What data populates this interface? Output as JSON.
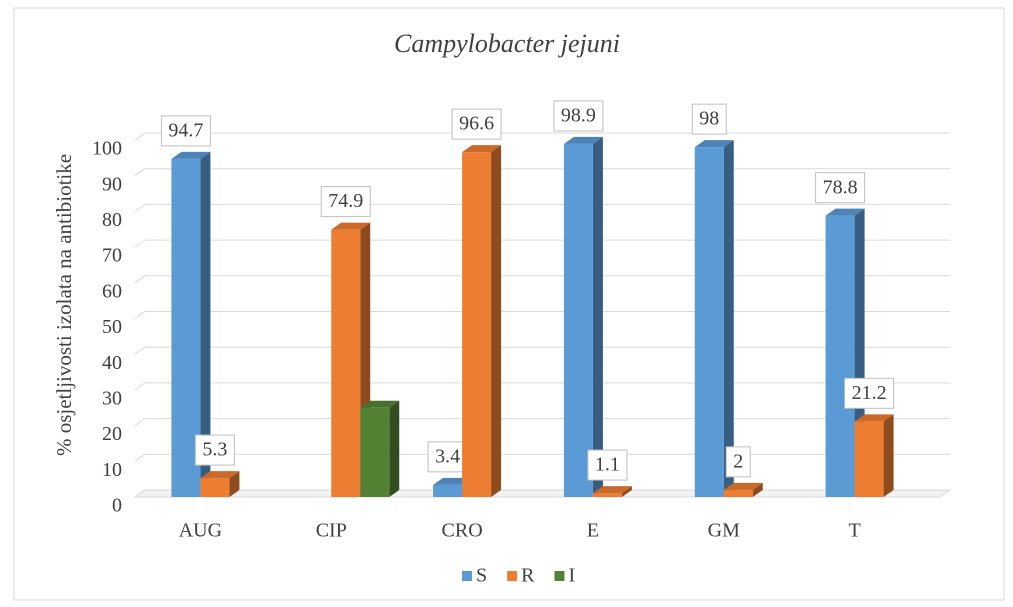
{
  "chart_data": {
    "type": "bar",
    "title": "Campylobacter jejuni",
    "y_label": "% osjetljivosti izolata na antibiotike",
    "categories": [
      "AUG",
      "CIP",
      "CRO",
      "E",
      "GM",
      "T"
    ],
    "series": [
      {
        "name": "S",
        "color": "#5b9bd5",
        "values": [
          94.7,
          null,
          3.4,
          98.9,
          98,
          78.8
        ],
        "data_labels": true
      },
      {
        "name": "R",
        "color": "#ed7d31",
        "values": [
          5.3,
          74.9,
          96.6,
          1.1,
          2,
          21.2
        ],
        "data_labels": true
      },
      {
        "name": "I",
        "color": "#548235",
        "values": [
          null,
          25,
          null,
          null,
          null,
          null
        ],
        "data_labels": false
      }
    ],
    "ylim": [
      0,
      100
    ],
    "yticks": [
      0,
      10,
      20,
      30,
      40,
      50,
      60,
      70,
      80,
      90,
      100
    ],
    "grid": true,
    "legend": "bottom"
  }
}
